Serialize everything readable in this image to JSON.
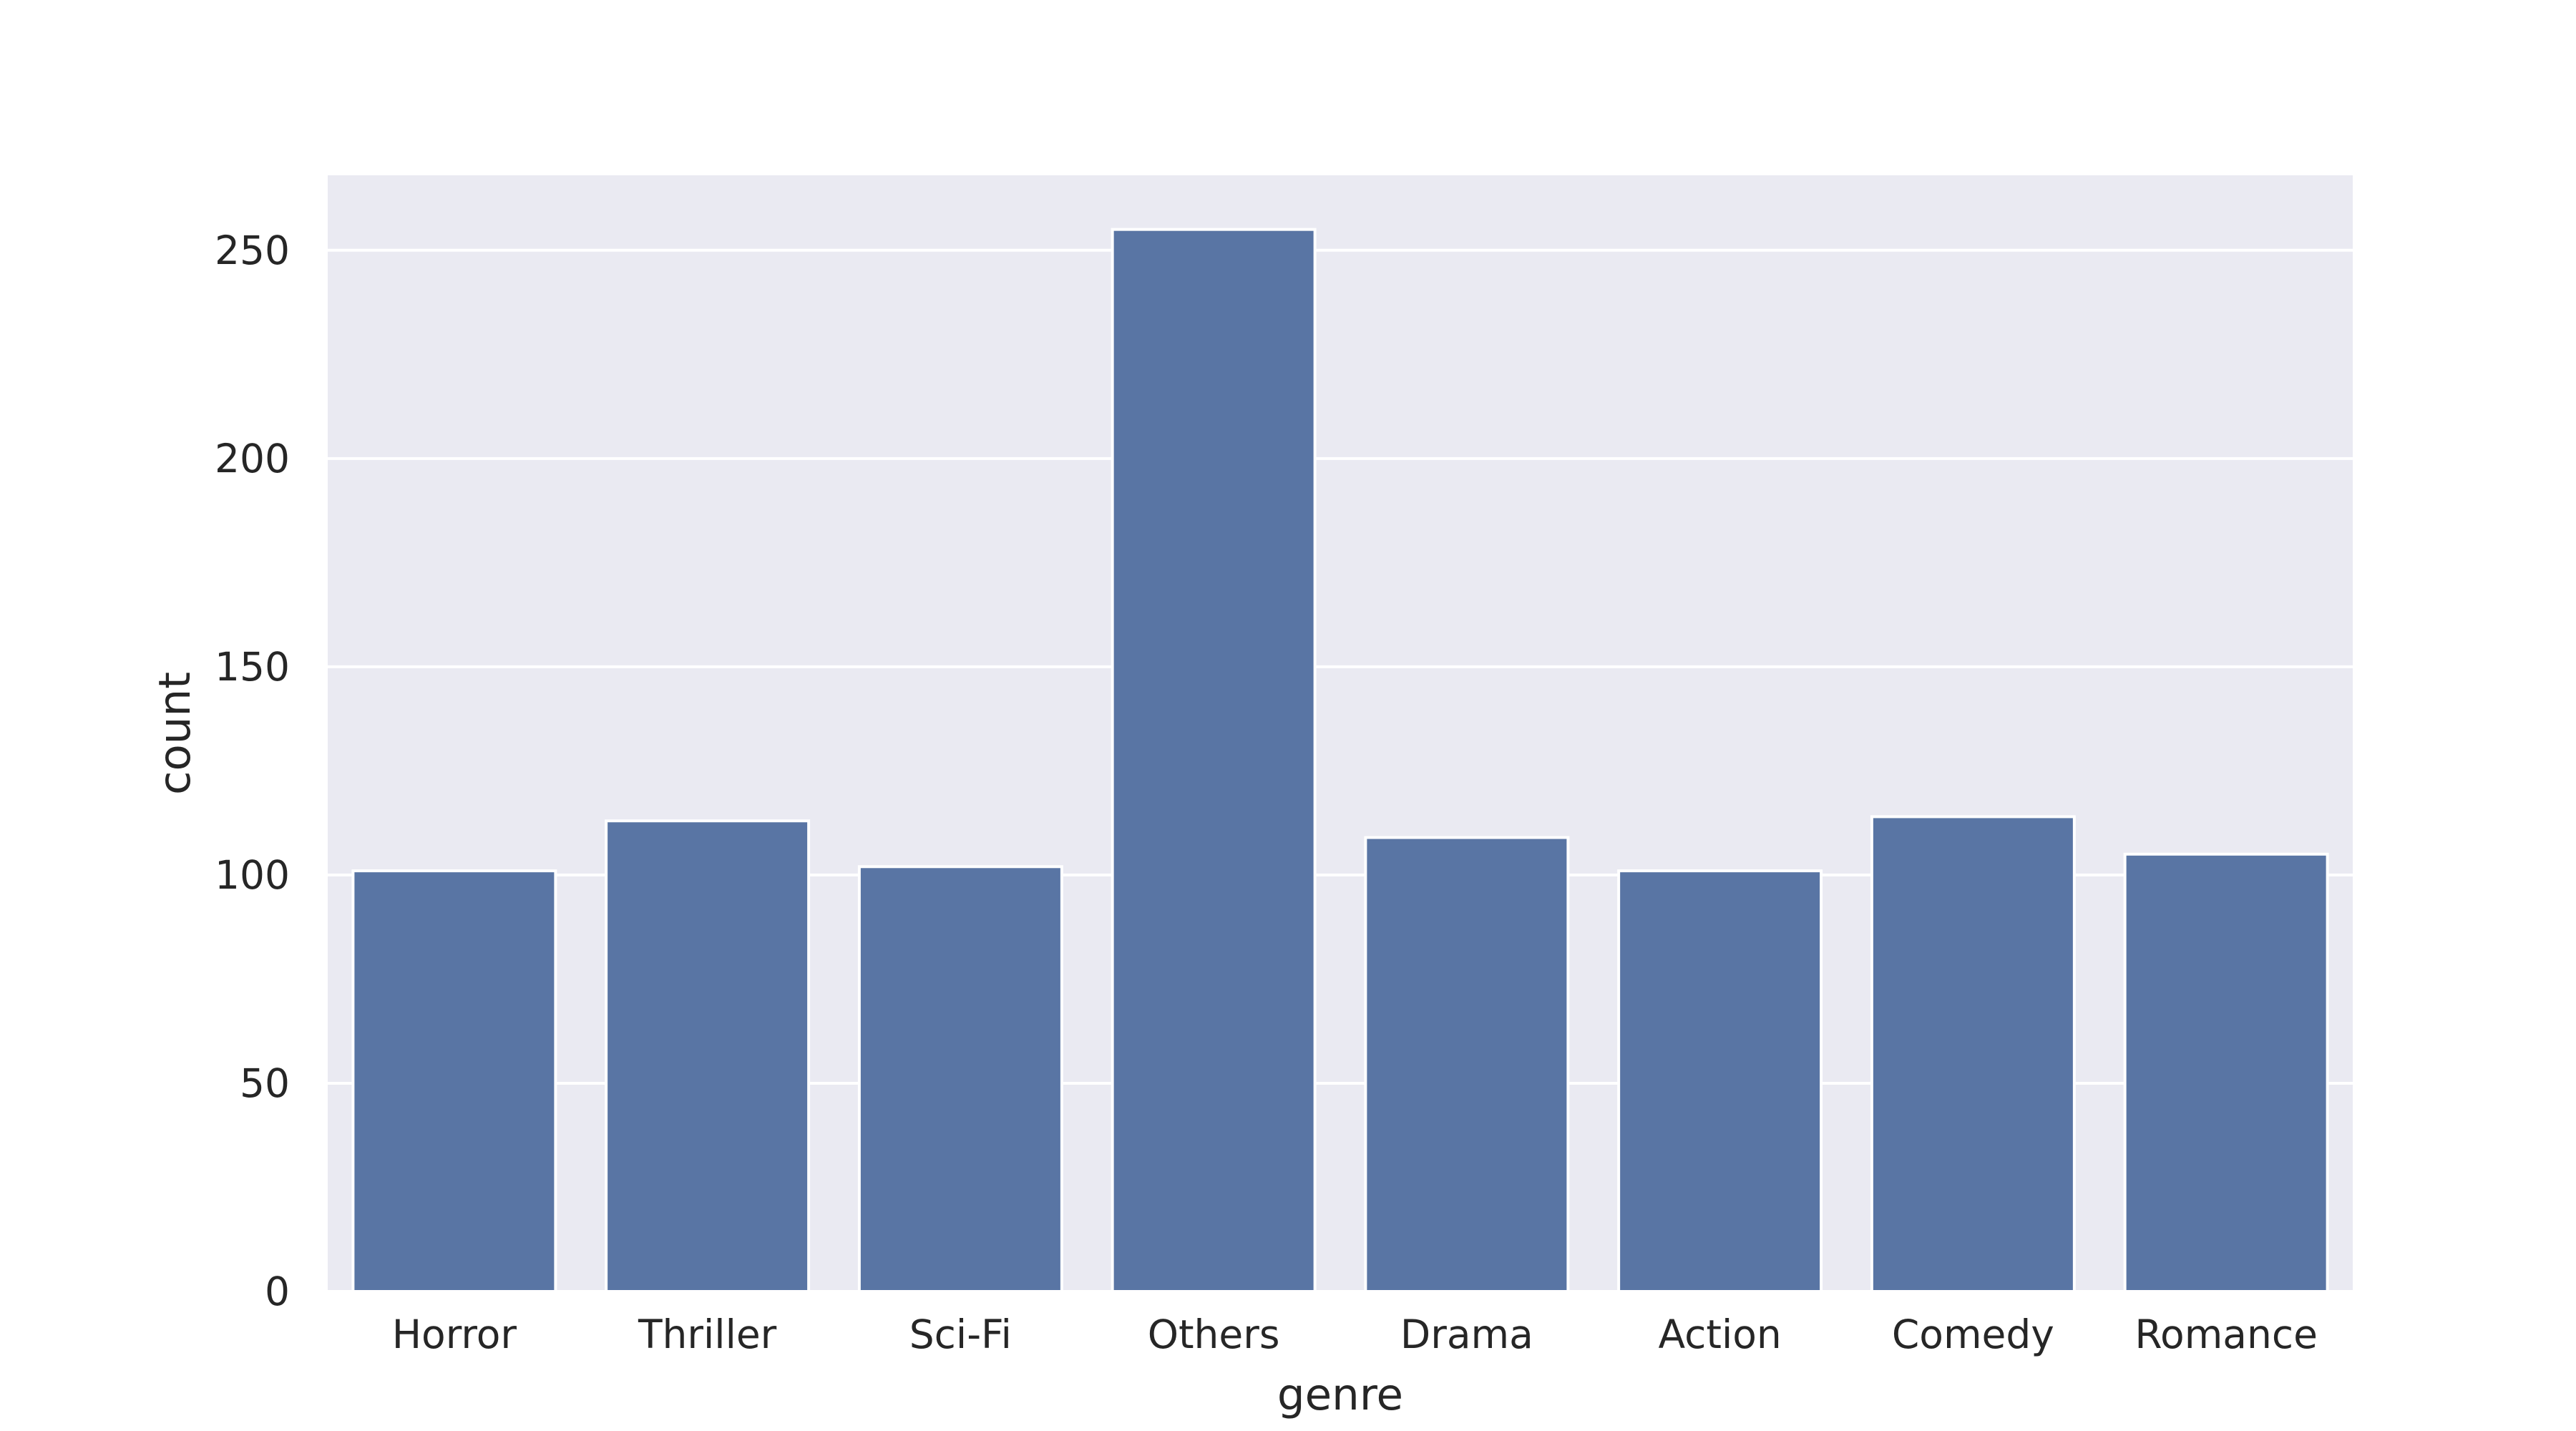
{
  "chart_data": {
    "type": "bar",
    "categories": [
      "Horror",
      "Thriller",
      "Sci-Fi",
      "Others",
      "Drama",
      "Action",
      "Comedy",
      "Romance"
    ],
    "values": [
      101,
      113,
      102,
      255,
      109,
      101,
      114,
      105
    ],
    "xlabel": "genre",
    "ylabel": "count",
    "ylim": [
      0,
      268
    ],
    "yticks": [
      0,
      50,
      100,
      150,
      200,
      250
    ],
    "ytick_labels": [
      "0",
      "50",
      "100",
      "150",
      "200",
      "250"
    ],
    "grid": true,
    "legend": "none",
    "colors": {
      "bar": "#5975a4",
      "plot_background": "#eaeaf2",
      "grid": "#ffffff",
      "text": "#262626"
    }
  }
}
